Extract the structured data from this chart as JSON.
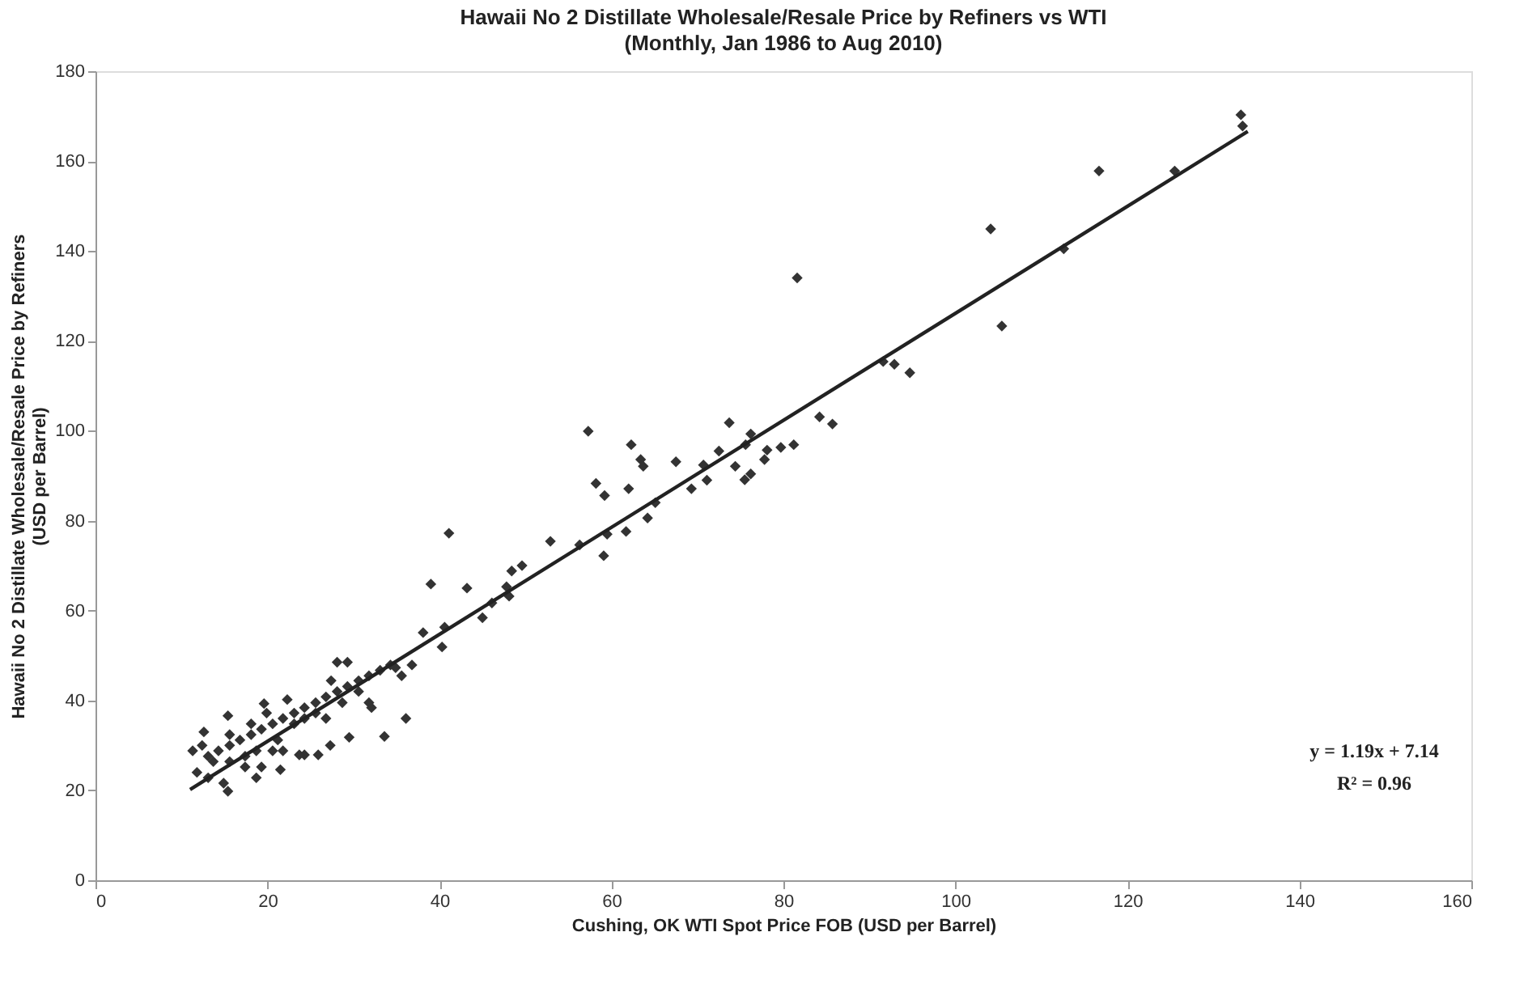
{
  "chart_data": {
    "type": "scatter",
    "title": "Hawaii No 2 Distillate Wholesale/Resale Price by Refiners vs WTI",
    "subtitle": "(Monthly, Jan 1986 to Aug 2010)",
    "xlabel": "Cushing, OK WTI Spot Price FOB (USD per Barrel)",
    "ylabel": "Hawaii No 2 Distillate Wholesale/Resale Price by Refiners (USD per Barrel)",
    "xlim": [
      0,
      160
    ],
    "xticks": [
      0,
      20,
      40,
      60,
      80,
      100,
      120,
      140,
      160
    ],
    "ylim": [
      0,
      180
    ],
    "yticks": [
      0,
      20,
      40,
      60,
      80,
      100,
      120,
      140,
      160,
      180
    ],
    "grid": false,
    "annotations": [
      "y = 1.19x + 7.14",
      "R² = 0.96"
    ],
    "series": [
      {
        "color": "#333333",
        "marker": "diamond",
        "x": [
          133.2,
          133.4,
          116.7,
          125.5,
          104.1,
          112.6,
          105.4,
          91.6,
          92.9,
          94.7,
          81.6,
          73.7,
          76.2,
          57.3,
          62.3,
          63.4,
          63.7,
          67.5,
          58.2,
          59.2,
          62.0,
          65.1,
          64.2,
          61.7,
          59.5,
          59.1,
          56.3,
          52.9,
          49.6,
          48.4,
          47.8,
          48.1,
          46.1,
          45.0,
          43.2,
          41.1,
          39.0,
          40.6,
          40.3,
          38.1,
          69.3,
          71.1,
          70.7,
          72.5,
          74.4,
          75.5,
          76.2,
          75.6,
          78.1,
          77.8,
          79.7,
          81.2,
          84.2,
          85.7,
          36.1,
          33.6,
          29.5,
          27.3,
          25.9,
          24.3,
          23.7,
          22.3,
          19.6,
          15.4,
          12.6,
          11.3,
          11.8,
          14.9,
          15.4,
          18.7,
          21.5,
          29.3,
          28.1,
          32.1,
          34.3,
          36.8,
          13.1,
          14.3,
          15.6,
          16.8,
          18.1,
          19.3,
          20.6,
          21.8,
          23.1,
          24.3,
          25.6,
          26.8,
          28.1,
          29.3,
          30.6,
          31.8,
          33.1,
          34.9,
          15.6,
          17.4,
          18.7,
          19.9,
          21.2,
          17.4,
          15.6,
          23.1,
          25.6,
          27.4,
          28.7,
          30.6,
          31.8,
          35.6,
          12.4,
          13.7,
          18.1,
          20.6,
          24.3,
          26.8,
          19.3,
          21.8,
          13.1
        ],
        "values": [
          170.3,
          167.8,
          157.8,
          157.8,
          144.9,
          140.5,
          123.3,
          115.4,
          114.8,
          112.9,
          134.0,
          101.8,
          99.3,
          99.9,
          96.9,
          93.6,
          92.1,
          93.1,
          88.3,
          85.6,
          87.1,
          84.0,
          80.6,
          77.6,
          77.0,
          72.2,
          74.6,
          75.4,
          70.0,
          68.8,
          65.3,
          63.2,
          61.7,
          58.4,
          65.0,
          77.2,
          65.9,
          56.3,
          51.9,
          55.1,
          87.1,
          89.0,
          92.4,
          95.5,
          92.1,
          89.1,
          90.4,
          96.9,
          95.7,
          93.6,
          96.3,
          96.9,
          103.1,
          101.5,
          36.0,
          32.0,
          31.8,
          30.0,
          27.9,
          27.9,
          27.9,
          40.2,
          39.3,
          36.6,
          33.0,
          28.8,
          24.0,
          21.6,
          19.8,
          22.8,
          24.6,
          48.5,
          48.5,
          38.4,
          47.9,
          47.9,
          27.6,
          28.8,
          30.0,
          31.2,
          32.4,
          33.6,
          34.8,
          36.0,
          37.2,
          38.4,
          39.5,
          40.8,
          42.0,
          43.1,
          44.4,
          45.5,
          46.7,
          47.3,
          32.4,
          27.6,
          28.8,
          37.2,
          31.2,
          25.2,
          26.4,
          34.8,
          37.2,
          44.4,
          39.5,
          42.0,
          39.5,
          45.5,
          30.0,
          26.4,
          34.8,
          28.8,
          36.0,
          36.0,
          25.2,
          28.8,
          22.8
        ]
      },
      {
        "type": "line",
        "color": "#222222",
        "x": [
          11,
          134
        ],
        "values": [
          20.2,
          166.6
        ]
      }
    ]
  }
}
